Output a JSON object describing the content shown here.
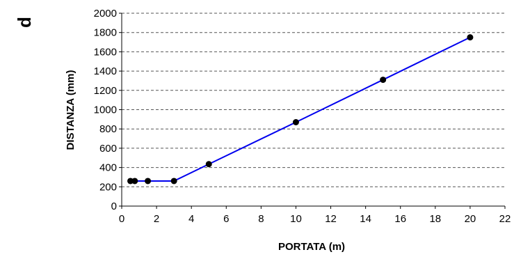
{
  "panel_label": "d",
  "chart_data": {
    "type": "line",
    "xlabel": "PORTATA (m)",
    "ylabel": "DISTANZA (mm)",
    "xlim": [
      0,
      22
    ],
    "ylim": [
      0,
      2000
    ],
    "x_ticks": [
      0,
      2,
      4,
      6,
      8,
      10,
      12,
      14,
      16,
      18,
      20,
      22
    ],
    "y_ticks": [
      0,
      200,
      400,
      600,
      800,
      1000,
      1200,
      1400,
      1600,
      1800,
      2000
    ],
    "grid": "horizontal-dashed",
    "line_color": "#0000ee",
    "marker_color": "#000000",
    "series": [
      {
        "x": [
          0.5,
          0.75,
          1.5,
          3,
          5,
          10,
          15,
          20
        ],
        "y": [
          260,
          260,
          260,
          260,
          435,
          870,
          1310,
          1750
        ]
      }
    ]
  }
}
